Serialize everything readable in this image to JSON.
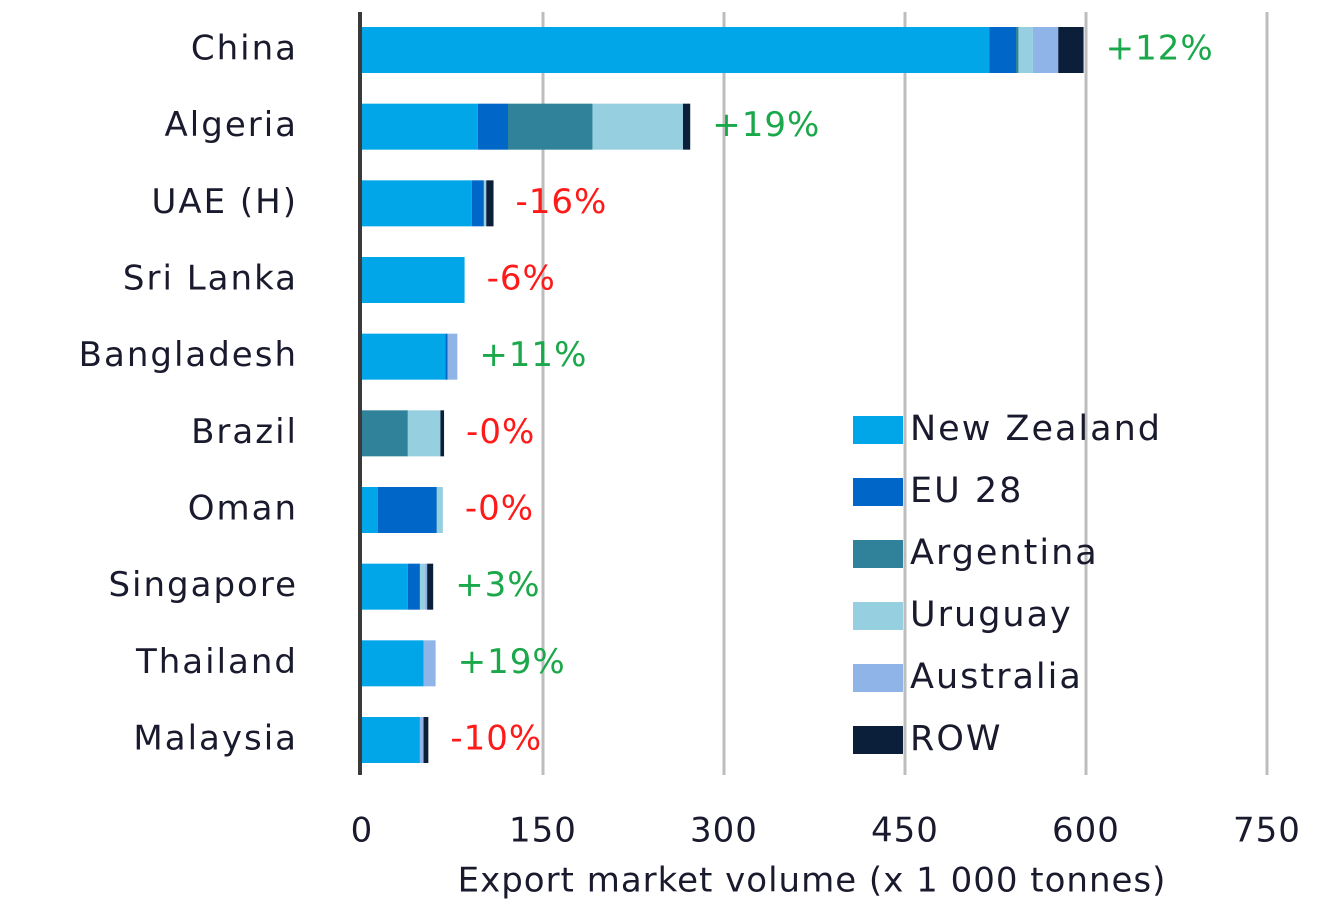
{
  "chart_data": {
    "type": "stacked_barh",
    "categories": [
      "China",
      "Algeria",
      "UAE (H)",
      "Sri Lanka",
      "Bangladesh",
      "Brazil",
      "Oman",
      "Singapore",
      "Thailand",
      "Malaysia"
    ],
    "series": [
      {
        "name": "New Zealand",
        "color": "#00a6e8",
        "values": [
          520,
          96,
          91,
          85,
          69,
          0,
          13,
          38,
          51,
          48
        ]
      },
      {
        "name": "EU 28",
        "color": "#0066c8",
        "values": [
          22,
          25,
          10,
          0,
          2,
          0,
          49,
          10,
          0,
          0
        ]
      },
      {
        "name": "Argentina",
        "color": "#2f8299",
        "values": [
          2,
          70,
          0,
          0,
          0,
          38,
          0,
          0,
          0,
          0
        ]
      },
      {
        "name": "Uruguay",
        "color": "#96cfe0",
        "values": [
          12,
          75,
          2,
          0,
          0,
          27,
          5,
          4,
          0,
          0
        ]
      },
      {
        "name": "Australia",
        "color": "#8fb5e8",
        "values": [
          21,
          0,
          0,
          0,
          8,
          0,
          0,
          2,
          10,
          3
        ]
      },
      {
        "name": "ROW",
        "color": "#0b1f3a",
        "values": [
          21,
          6,
          6,
          0,
          0,
          3,
          0,
          5,
          0,
          4
        ]
      }
    ],
    "growth_labels": [
      "+12%",
      "+19%",
      "-16%",
      "-6%",
      "+11%",
      "-0%",
      "-0%",
      "+3%",
      "+19%",
      "-10%"
    ],
    "growth_colors": [
      "#1aa84a",
      "#1aa84a",
      "#ff1a1a",
      "#ff1a1a",
      "#1aa84a",
      "#ff1a1a",
      "#ff1a1a",
      "#1aa84a",
      "#1aa84a",
      "#ff1a1a"
    ],
    "xlabel": "Export market volume (x 1 000 tonnes)",
    "xlim": [
      0,
      750
    ],
    "xticks": [
      0,
      150,
      300,
      450,
      600,
      750
    ],
    "grid": true,
    "legend": "lower right"
  }
}
